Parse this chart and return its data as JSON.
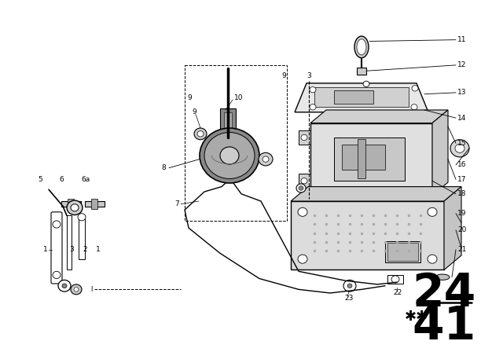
{
  "bg_color": "#ffffff",
  "fig_width": 6.4,
  "fig_height": 4.48,
  "dpi": 100,
  "part_number_top": "24",
  "part_number_bottom": "41"
}
